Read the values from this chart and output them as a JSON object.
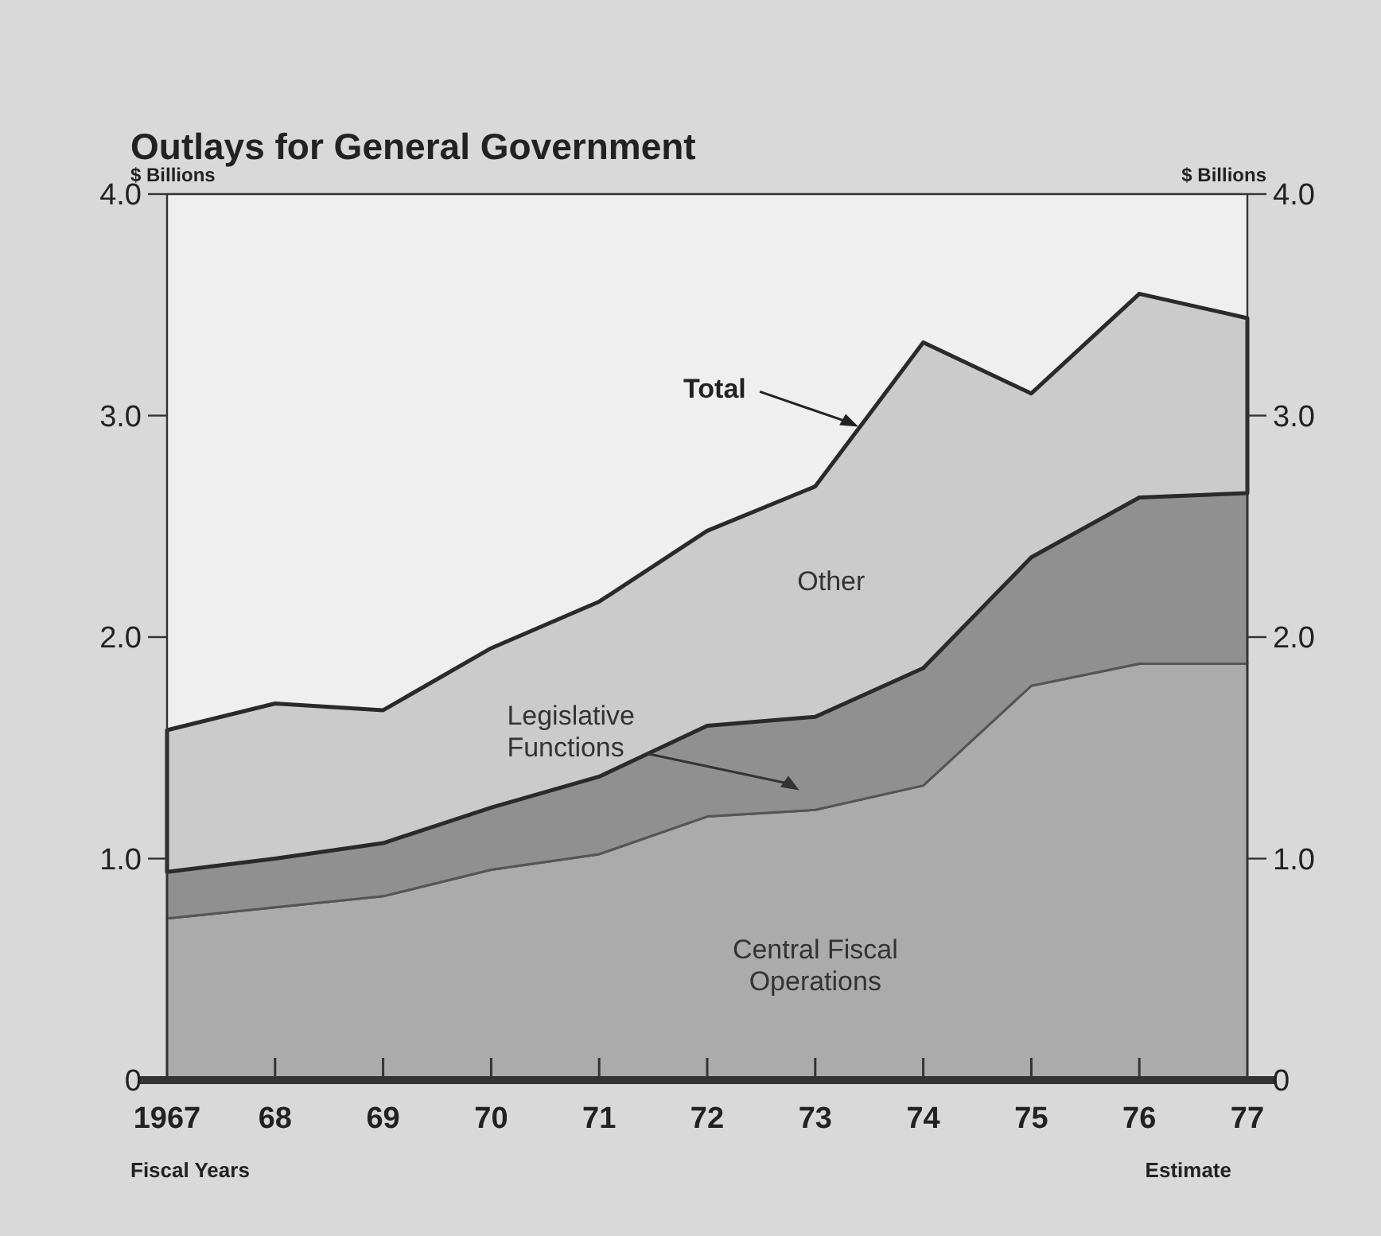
{
  "chart_data": {
    "type": "area",
    "stacked": true,
    "title": "Outlays for General Government",
    "ylabel": "$ Billions",
    "y2label": "$ Billions",
    "xlabel": "Fiscal Years",
    "x": [
      1967,
      1968,
      1969,
      1970,
      1971,
      1972,
      1973,
      1974,
      1975,
      1976,
      1977
    ],
    "xlim": [
      1967,
      1977
    ],
    "xticks": [
      {
        "value": 1967,
        "label": "1967"
      },
      {
        "value": 1968,
        "label": "68"
      },
      {
        "value": 1969,
        "label": "69"
      },
      {
        "value": 1970,
        "label": "70"
      },
      {
        "value": 1971,
        "label": "71"
      },
      {
        "value": 1972,
        "label": "72"
      },
      {
        "value": 1973,
        "label": "73"
      },
      {
        "value": 1974,
        "label": "74"
      },
      {
        "value": 1975,
        "label": "75"
      },
      {
        "value": 1976,
        "label": "76"
      },
      {
        "value": 1977,
        "label": "77"
      }
    ],
    "ylim": [
      0,
      4
    ],
    "yticks": [
      0,
      {
        "value": 1,
        "label": "1.0"
      },
      {
        "value": 2,
        "label": "2.0"
      },
      {
        "value": 3,
        "label": "3.0"
      },
      {
        "value": 4,
        "label": "4.0"
      }
    ],
    "y2lim": [
      0,
      4
    ],
    "y2ticks": [
      0,
      {
        "value": 1,
        "label": "1.0"
      },
      {
        "value": 2,
        "label": "2.0"
      },
      {
        "value": 3,
        "label": "3.0"
      },
      {
        "value": 4,
        "label": "4.0"
      }
    ],
    "grid": false,
    "series": [
      {
        "name": "Central Fiscal Operations",
        "color": "#ababab",
        "values": [
          0.73,
          0.78,
          0.83,
          0.95,
          1.02,
          1.19,
          1.22,
          1.33,
          1.78,
          1.88,
          1.88
        ]
      },
      {
        "name": "Legislative Functions",
        "color": "#909090",
        "values": [
          0.21,
          0.22,
          0.24,
          0.28,
          0.35,
          0.41,
          0.42,
          0.53,
          0.58,
          0.75,
          0.77
        ]
      },
      {
        "name": "Other",
        "color": "#cbcbcb",
        "values": [
          0.64,
          0.7,
          0.6,
          0.72,
          0.79,
          0.88,
          1.04,
          1.47,
          0.74,
          0.92,
          0.79
        ]
      }
    ],
    "annotations": [
      {
        "text": "Total",
        "x": 1973.4,
        "y": 2.95
      },
      "Estimate"
    ]
  }
}
